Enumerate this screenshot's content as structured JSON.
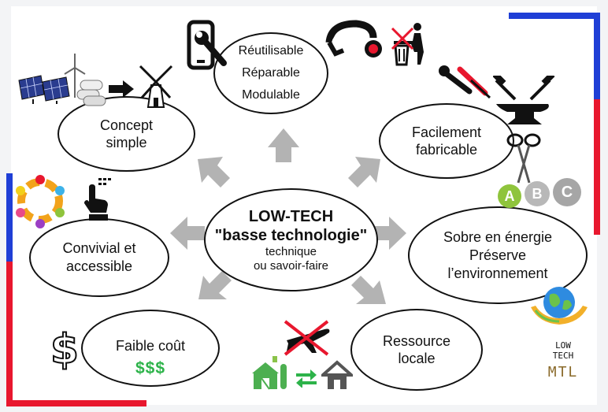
{
  "center": {
    "line1": "LOW-TECH",
    "line2": "\"basse technologie\"",
    "line3": "technique",
    "line4": "ou savoir-faire"
  },
  "nodes": {
    "top": [
      "Réutilisable",
      "Réparable",
      "Modulable"
    ],
    "concept": [
      "Concept",
      "simple"
    ],
    "fabricable": [
      "Facilement",
      "fabricable"
    ],
    "convivial": [
      "Convivial et",
      "accessible"
    ],
    "sobre": [
      "Sobre en énergie",
      "Préserve",
      "l’environnement"
    ],
    "cout": [
      "Faible coût"
    ],
    "ressource": [
      "Ressource",
      "locale"
    ]
  },
  "decor": {
    "dollars": "$$$",
    "dollar_big": "$",
    "energy_grades": [
      "A",
      "B",
      "C"
    ],
    "logo": [
      "LOW",
      "TECH",
      "MTL"
    ]
  },
  "colors": {
    "blue": "#1f3fd6",
    "red": "#e8172e",
    "arrow": "#b3b3b3",
    "green": "#2db34a"
  }
}
